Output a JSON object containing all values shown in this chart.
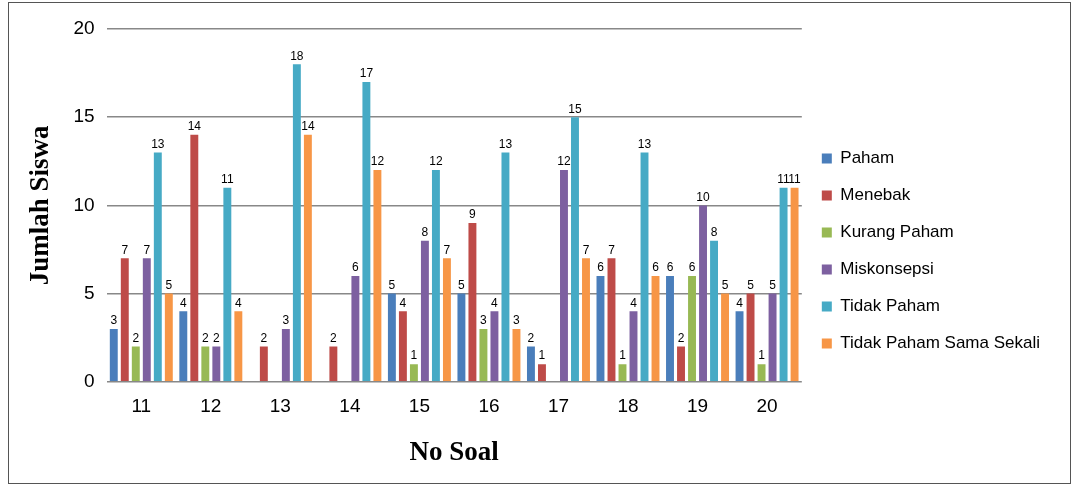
{
  "chart_data": {
    "type": "bar",
    "xlabel": "No Soal",
    "ylabel": "Jumlah Siswa",
    "categories": [
      "11",
      "12",
      "13",
      "14",
      "15",
      "16",
      "17",
      "18",
      "19",
      "20"
    ],
    "ylim": [
      0,
      20
    ],
    "yticks": [
      0,
      5,
      10,
      15,
      20
    ],
    "grid": "y",
    "legend": "right",
    "series": [
      {
        "name": "Paham",
        "color": "#4a7ebb",
        "values": [
          3,
          4,
          0,
          0,
          5,
          5,
          2,
          6,
          6,
          4
        ],
        "value_labels": [
          "3",
          "4",
          null,
          null,
          "5",
          "5",
          "2",
          "6",
          "6",
          "4"
        ]
      },
      {
        "name": "Menebak",
        "color": "#be4b48",
        "values": [
          7,
          14,
          2,
          2,
          4,
          9,
          1,
          7,
          2,
          5
        ],
        "value_labels": [
          "7",
          "14",
          "2",
          "2",
          "4",
          "9",
          "1",
          "7",
          "2",
          "5"
        ]
      },
      {
        "name": "Kurang Paham",
        "color": "#98b954",
        "values": [
          2,
          2,
          0,
          0,
          1,
          3,
          0,
          1,
          6,
          1
        ],
        "value_labels": [
          "2",
          "2",
          null,
          null,
          "1",
          "3",
          null,
          "1",
          "6",
          "1"
        ]
      },
      {
        "name": "Miskonsepsi",
        "color": "#7d60a0",
        "values": [
          7,
          2,
          3,
          6,
          8,
          4,
          12,
          4,
          10,
          5
        ],
        "value_labels": [
          "7",
          "2",
          "3",
          "6",
          "8",
          "4",
          "12",
          "4",
          "10",
          "5"
        ]
      },
      {
        "name": "Tidak Paham",
        "color": "#46aac5",
        "values": [
          13,
          11,
          18,
          17,
          12,
          13,
          15,
          13,
          8,
          11
        ],
        "value_labels": [
          "13",
          "11",
          "18",
          "17",
          "12",
          "13",
          "15",
          "13",
          "8",
          "11"
        ]
      },
      {
        "name": "Tidak Paham Sama Sekali",
        "color": "#f79646",
        "values": [
          5,
          4,
          14,
          12,
          7,
          3,
          7,
          6,
          5,
          11
        ],
        "value_labels": [
          "5",
          "4",
          "14",
          "12",
          "7",
          "3",
          "7",
          "6",
          "5",
          "11"
        ]
      }
    ]
  }
}
